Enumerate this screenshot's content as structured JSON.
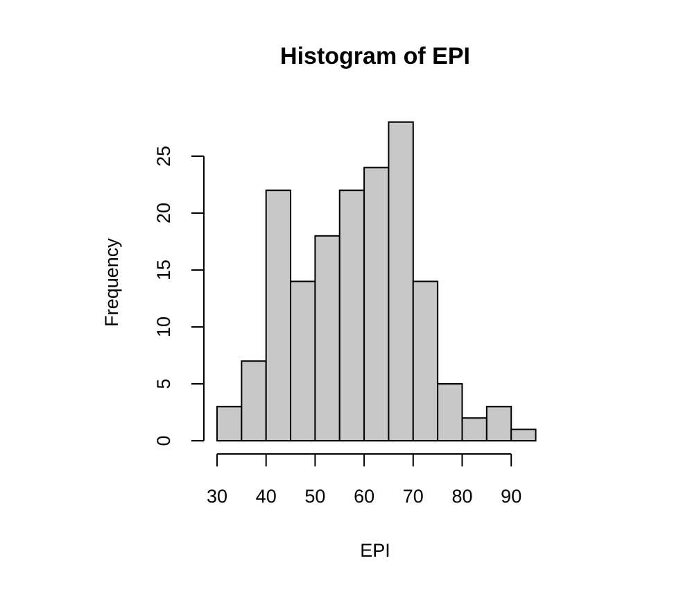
{
  "chart_data": {
    "type": "bar",
    "title": "Histogram of EPI",
    "xlabel": "EPI",
    "ylabel": "Frequency",
    "bins": [
      {
        "x0": 30,
        "x1": 35,
        "count": 3
      },
      {
        "x0": 35,
        "x1": 40,
        "count": 7
      },
      {
        "x0": 40,
        "x1": 45,
        "count": 22
      },
      {
        "x0": 45,
        "x1": 50,
        "count": 14
      },
      {
        "x0": 50,
        "x1": 55,
        "count": 18
      },
      {
        "x0": 55,
        "x1": 60,
        "count": 22
      },
      {
        "x0": 60,
        "x1": 65,
        "count": 24
      },
      {
        "x0": 65,
        "x1": 70,
        "count": 28
      },
      {
        "x0": 70,
        "x1": 75,
        "count": 14
      },
      {
        "x0": 75,
        "x1": 80,
        "count": 5
      },
      {
        "x0": 80,
        "x1": 85,
        "count": 2
      },
      {
        "x0": 85,
        "x1": 90,
        "count": 3
      },
      {
        "x0": 90,
        "x1": 95,
        "count": 1
      }
    ],
    "xticks": [
      30,
      40,
      50,
      60,
      70,
      80,
      90
    ],
    "yticks": [
      0,
      5,
      10,
      15,
      20,
      25
    ],
    "xlim": [
      30,
      95
    ],
    "ylim": [
      0,
      28
    ],
    "grid": false,
    "colors": {
      "bar_fill": "#c8c8c8",
      "bar_stroke": "#000000"
    }
  }
}
